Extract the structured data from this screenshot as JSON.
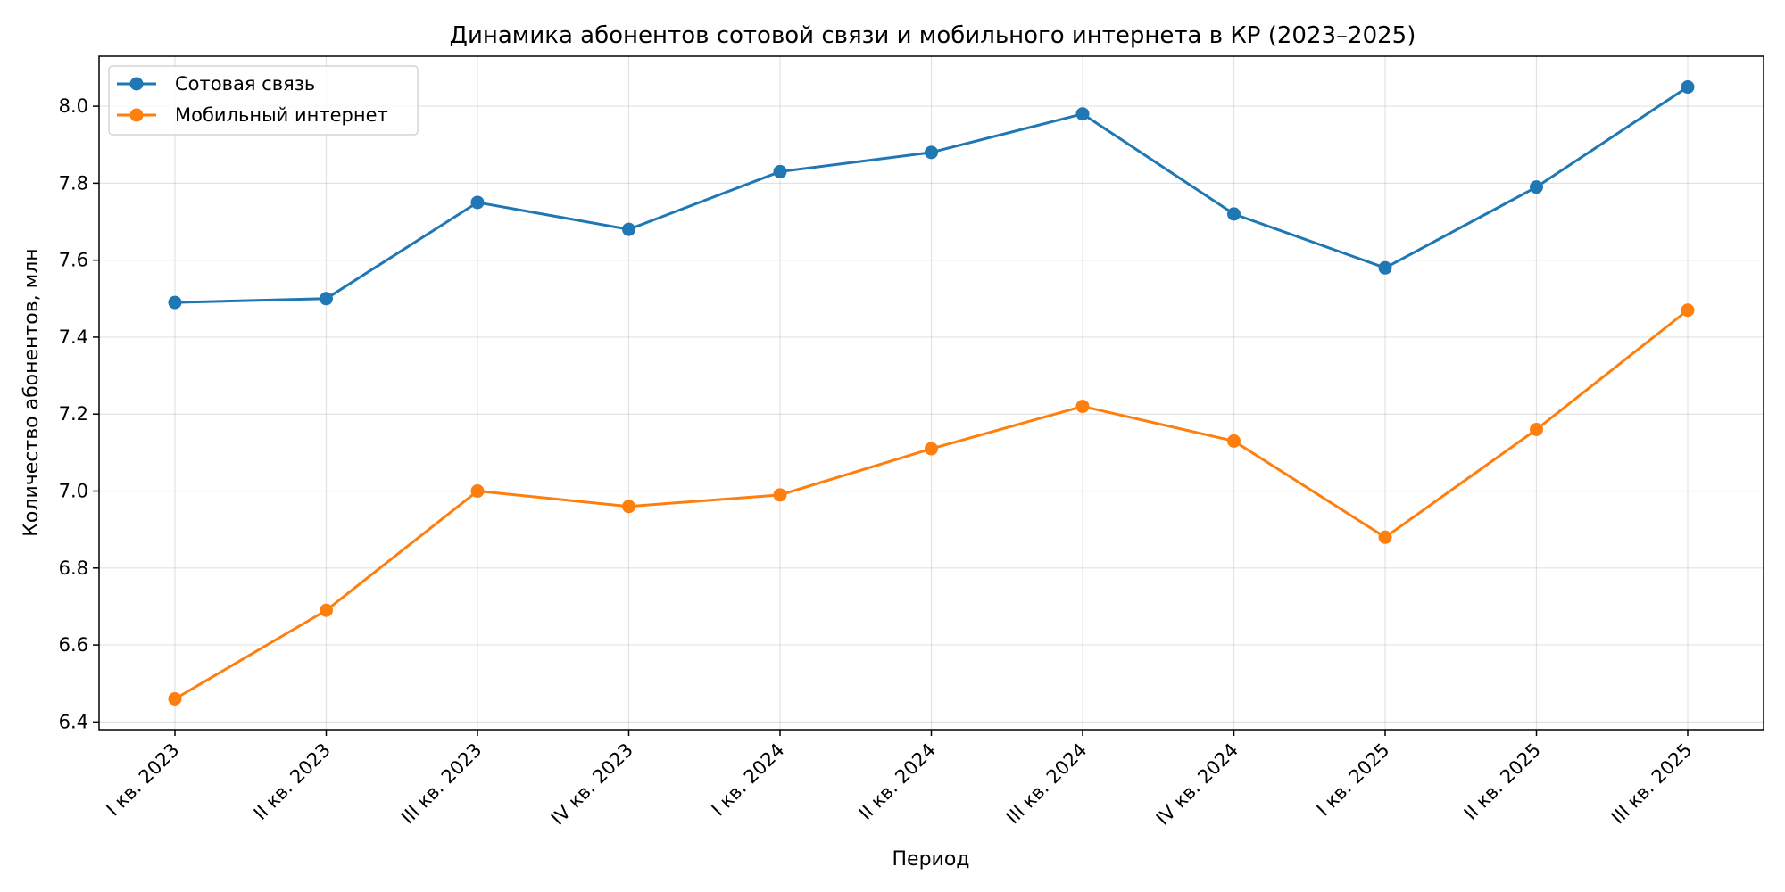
{
  "chart_data": {
    "type": "line",
    "title": "Динамика абонентов сотовой связи и мобильного интернета в КР (2023–2025)",
    "xlabel": "Период",
    "ylabel": "Количество абонентов, млн",
    "categories": [
      "I кв. 2023",
      "II кв. 2023",
      "III кв. 2023",
      "IV кв. 2023",
      "I кв. 2024",
      "II кв. 2024",
      "III кв. 2024",
      "IV кв. 2024",
      "I кв. 2025",
      "II кв. 2025",
      "III кв. 2025"
    ],
    "ylim": [
      6.38,
      8.13
    ],
    "yticks": [
      6.4,
      6.6,
      6.8,
      7.0,
      7.2,
      7.4,
      7.6,
      7.8,
      8.0
    ],
    "grid": true,
    "legend_position": "top-left",
    "series": [
      {
        "name": "Сотовая связь",
        "color": "#1f77b4",
        "marker": "circle",
        "values": [
          7.49,
          7.5,
          7.75,
          7.68,
          7.83,
          7.88,
          7.98,
          7.72,
          7.58,
          7.79,
          8.05
        ]
      },
      {
        "name": "Мобильный интернет",
        "color": "#ff7f0e",
        "marker": "circle",
        "values": [
          6.46,
          6.69,
          7.0,
          6.96,
          6.99,
          7.11,
          7.22,
          7.13,
          6.88,
          7.16,
          7.47
        ]
      }
    ]
  }
}
